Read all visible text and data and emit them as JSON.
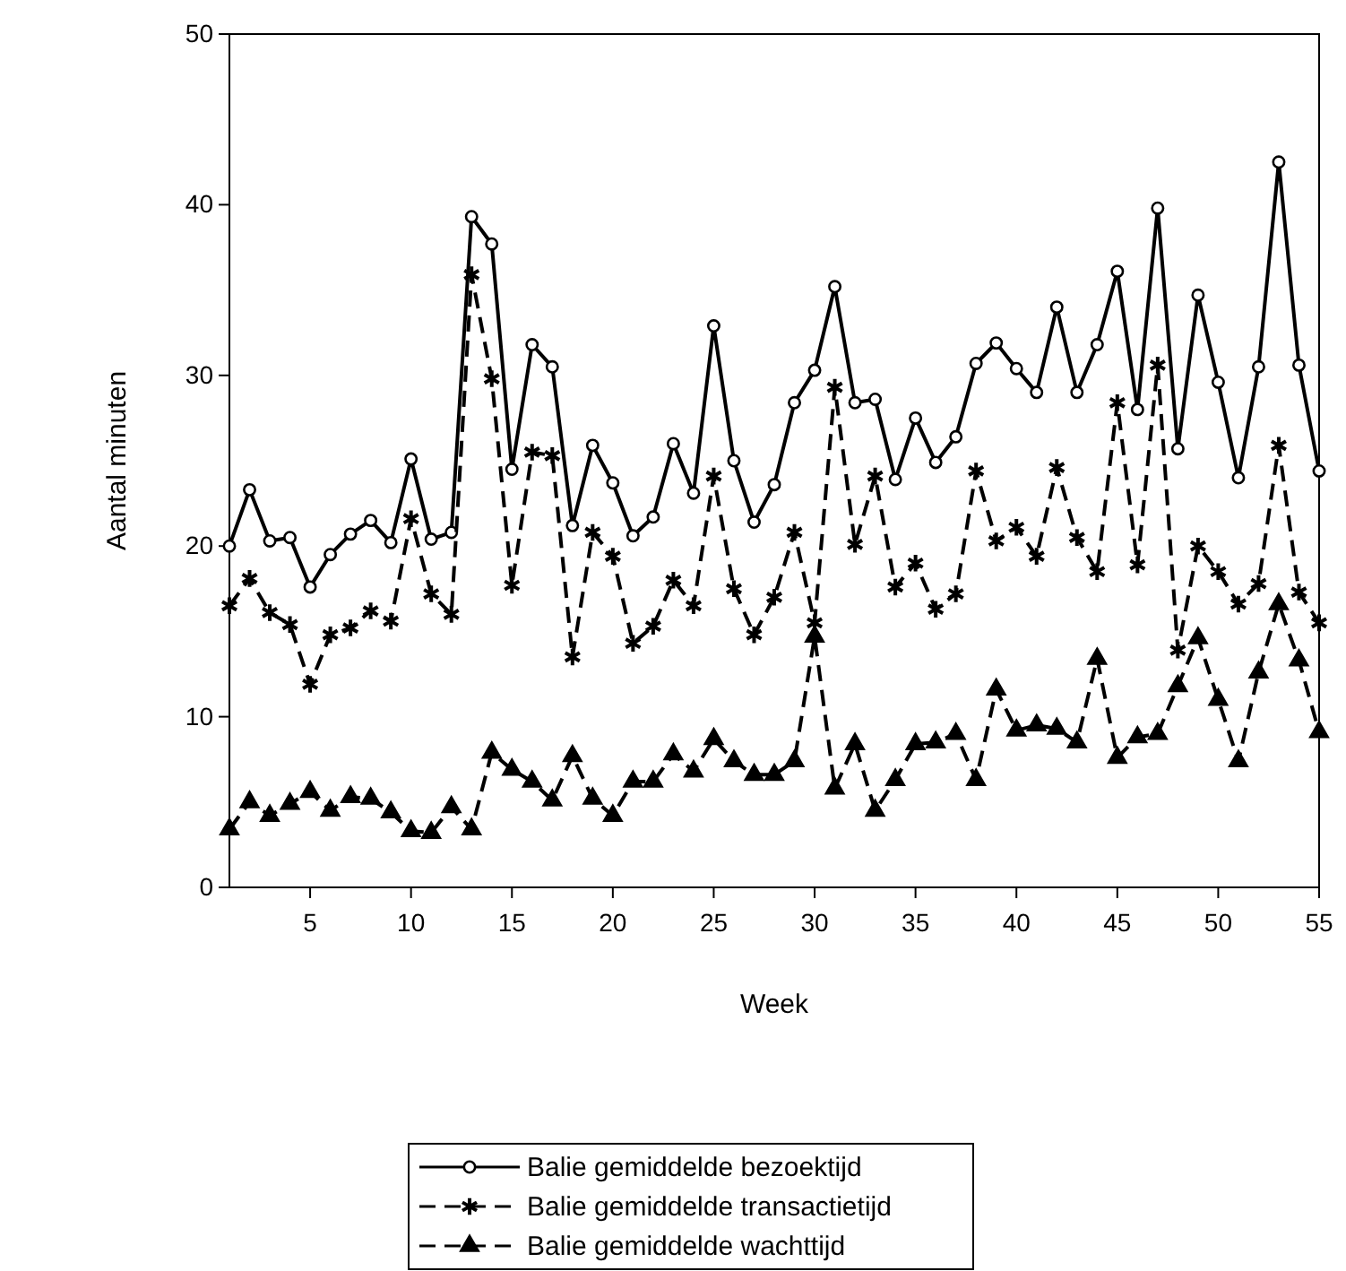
{
  "chart_data": {
    "type": "line",
    "xlabel": "Week",
    "ylabel": "Aantal minuten",
    "xlim": [
      1,
      55
    ],
    "xticks": [
      5,
      10,
      15,
      20,
      25,
      30,
      35,
      40,
      45,
      50,
      55
    ],
    "ylim": [
      0,
      50
    ],
    "yticks": [
      0,
      10,
      20,
      30,
      40,
      50
    ],
    "grid": false,
    "legend": "bottom",
    "x": [
      1,
      2,
      3,
      4,
      5,
      6,
      7,
      8,
      9,
      10,
      11,
      12,
      13,
      14,
      15,
      16,
      17,
      18,
      19,
      20,
      21,
      22,
      23,
      24,
      25,
      26,
      27,
      28,
      29,
      30,
      31,
      32,
      33,
      34,
      35,
      36,
      37,
      38,
      39,
      40,
      41,
      42,
      43,
      44,
      45,
      46,
      47,
      48,
      49,
      50,
      51,
      52,
      53,
      54,
      55
    ],
    "series": [
      {
        "name": "Balie gemiddelde bezoektijd",
        "color": "#000000",
        "marker": "circle",
        "line_style": "solid",
        "values": [
          20,
          23.3,
          20.3,
          20.5,
          17.6,
          19.5,
          20.7,
          21.5,
          20.2,
          25.1,
          20.4,
          20.8,
          39.3,
          37.7,
          24.5,
          31.8,
          30.5,
          21.2,
          25.9,
          23.7,
          20.6,
          21.7,
          26,
          23.1,
          32.9,
          25,
          21.4,
          23.6,
          28.4,
          30.3,
          35.2,
          28.4,
          28.6,
          23.9,
          27.5,
          24.9,
          26.4,
          30.7,
          31.9,
          30.4,
          29,
          34,
          29,
          31.8,
          36.1,
          28,
          39.8,
          25.7,
          34.7,
          29.6,
          24,
          30.5,
          42.5,
          30.6,
          24.4
        ]
      },
      {
        "name": "Balie gemiddelde transactietijd",
        "color": "#000000",
        "marker": "cross",
        "line_style": "dashed",
        "values": [
          16.5,
          18.1,
          16.1,
          15.4,
          11.9,
          14.8,
          15.2,
          16.2,
          15.6,
          21.6,
          17.2,
          16,
          35.9,
          29.8,
          17.7,
          25.5,
          25.3,
          13.5,
          20.8,
          19.4,
          14.3,
          15.3,
          18,
          16.5,
          24.1,
          17.5,
          14.8,
          17,
          20.8,
          15.5,
          29.3,
          20.1,
          24.1,
          17.6,
          19,
          16.3,
          17.2,
          24.4,
          20.3,
          21.1,
          19.4,
          24.6,
          20.5,
          18.5,
          28.4,
          18.9,
          30.6,
          13.9,
          20,
          18.5,
          16.6,
          17.8,
          25.9,
          17.3,
          15.5
        ]
      },
      {
        "name": "Balie gemiddelde wachttijd",
        "color": "#000000",
        "marker": "triangle",
        "line_style": "dashed",
        "values": [
          3.4,
          5,
          4.2,
          4.9,
          5.6,
          4.5,
          5.3,
          5.2,
          4.4,
          3.3,
          3.2,
          4.7,
          3.4,
          7.9,
          6.9,
          6.2,
          5.1,
          7.7,
          5.2,
          4.2,
          6.2,
          6.2,
          7.8,
          6.8,
          8.7,
          7.4,
          6.6,
          6.6,
          7.4,
          14.7,
          5.8,
          8.4,
          4.5,
          6.3,
          8.4,
          8.5,
          9,
          6.3,
          11.6,
          9.2,
          9.5,
          9.3,
          8.5,
          13.4,
          7.6,
          8.8,
          9,
          11.8,
          14.6,
          11,
          7.4,
          12.6,
          16.6,
          13.3,
          9.1
        ]
      }
    ]
  }
}
